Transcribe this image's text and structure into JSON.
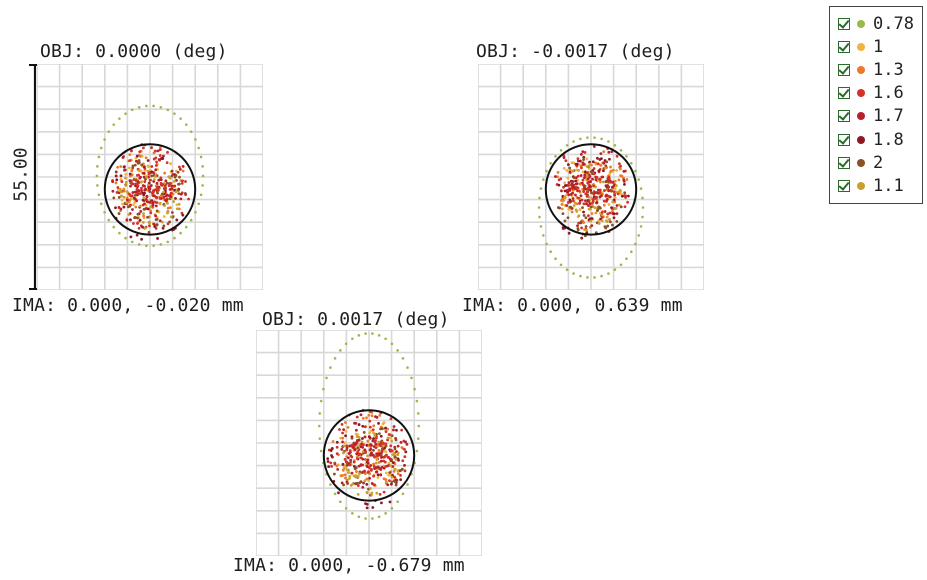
{
  "chart_data": [
    {
      "type": "scatter",
      "title": "OBJ: 0.0000 (deg)",
      "xlabel": "IMA: 0.000, -0.020 mm",
      "airy_radius_div": 2.0,
      "centroid_div": [
        0.0,
        0.55
      ]
    },
    {
      "type": "scatter",
      "title": "OBJ: -0.0017 (deg)",
      "xlabel": "IMA: 0.000, 0.639 mm",
      "airy_radius_div": 2.0,
      "centroid_div": [
        0.0,
        0.55
      ]
    },
    {
      "type": "scatter",
      "title": "OBJ: 0.0017 (deg)",
      "xlabel": "IMA: 0.000, -0.679 mm",
      "airy_radius_div": 2.0,
      "centroid_div": [
        0.0,
        0.55
      ]
    }
  ],
  "scale": {
    "label": "55.00",
    "divisions": 10
  },
  "legend": {
    "items": [
      {
        "label": "0.78",
        "color": "#9bb84a",
        "checked": true
      },
      {
        "label": "1",
        "color": "#f0b43c",
        "checked": true
      },
      {
        "label": "1.3",
        "color": "#ec7a2a",
        "checked": true
      },
      {
        "label": "1.6",
        "color": "#d2322a",
        "checked": true
      },
      {
        "label": "1.7",
        "color": "#b8202a",
        "checked": true
      },
      {
        "label": "1.8",
        "color": "#8c1a22",
        "checked": true
      },
      {
        "label": "2",
        "color": "#8a5228",
        "checked": true
      },
      {
        "label": "1.1",
        "color": "#c9a030",
        "checked": true
      }
    ]
  },
  "colors": {
    "grid": "#d8d8d8",
    "airy": "#111111",
    "outline": "#444444"
  }
}
